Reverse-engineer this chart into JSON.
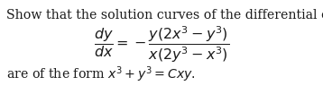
{
  "line1": "Show that the solution curves of the differential equation",
  "line_eq": "$\\dfrac{dy}{dx} = -\\dfrac{y(2x^3 - y^3)}{x(2y^3 - x^3)}$",
  "line3": "are of the form $x^3 + y^3 = Cxy.$",
  "bg_color": "#ffffff",
  "text_color": "#1a1a1a",
  "fontsize_text": 10.2,
  "fontsize_math": 11.5,
  "fig_width": 3.58,
  "fig_height": 1.05,
  "dpi": 100
}
